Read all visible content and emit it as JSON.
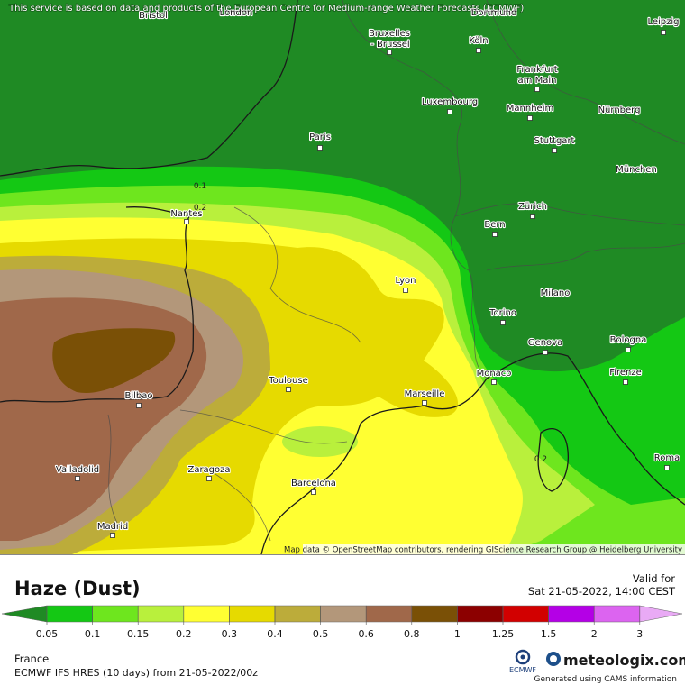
{
  "attribution": "This service is based on data and products of the European Centre for Medium-range Weather Forecasts (ECMWF)",
  "map": {
    "cities": [
      "Bristol",
      "London",
      "Dortmund",
      "Leipzig",
      "Bruxelles",
      "- Brussel",
      "Köln",
      "Frankfurt",
      "am Main",
      "Luxembourg",
      "Mannheim",
      "Nürnberg",
      "Paris",
      "Stuttgart",
      "München",
      "Nantes",
      "Zürich",
      "Bern",
      "Lyon",
      "Milano",
      "Torino",
      "Genova",
      "Bologna",
      "Monaco",
      "Firenze",
      "Toulouse",
      "Marseille",
      "Bilbao",
      "Valladolid",
      "Zaragoza",
      "Barcelona",
      "Roma",
      "Madrid"
    ],
    "contour_labels": [
      "0.1",
      "0.2",
      "0.2"
    ],
    "credit": "Map data © OpenStreetMap contributors, rendering GIScience Research Group @ Heidelberg University"
  },
  "header": {
    "title": "Haze (Dust)",
    "valid_label": "Valid for",
    "valid_time": "Sat 21-05-2022, 14:00 CEST"
  },
  "legend": {
    "colors": [
      "#1f8a24",
      "#14c814",
      "#6ee61e",
      "#b9f03c",
      "#ffff32",
      "#e6da00",
      "#bcac3a",
      "#b3977a",
      "#a0684a",
      "#7a5006",
      "#8c0000",
      "#d20000",
      "#b400e6",
      "#dc64f0",
      "#e9aaf5"
    ],
    "ticks": [
      0.05,
      0.1,
      0.15,
      0.2,
      0.3,
      0.4,
      0.5,
      0.6,
      0.8,
      1,
      1.25,
      1.5,
      2,
      3
    ]
  },
  "footer": {
    "region": "France",
    "model": "ECMWF IFS HRES (10 days) from 21-05-2022/00z",
    "ecmwf": "ECMWF",
    "brand": "meteologix.com",
    "cams": "Generated using CAMS information"
  }
}
